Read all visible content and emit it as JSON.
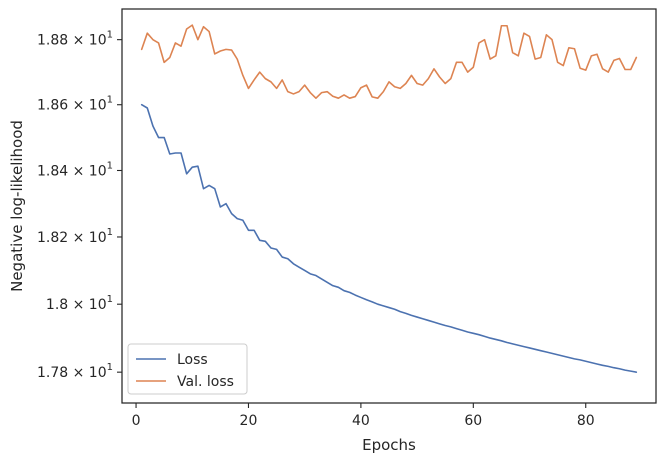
{
  "chart_data": {
    "type": "line",
    "xlabel": "Epochs",
    "ylabel": "Negative log-likelihood",
    "xlim": [
      -2.5,
      92.5
    ],
    "ylim": [
      17.71,
      18.895
    ],
    "y_scale": "log",
    "grid": false,
    "legend_position": "lower-left",
    "x_ticks": [
      0,
      20,
      40,
      60,
      80
    ],
    "x_tick_labels": [
      "0",
      "20",
      "40",
      "60",
      "80"
    ],
    "y_ticks": [
      17.8,
      18.0,
      18.2,
      18.4,
      18.6,
      18.8
    ],
    "y_tick_labels": [
      {
        "mantissa": "1.78",
        "exponent": "1"
      },
      {
        "mantissa": "1.8",
        "exponent": "1"
      },
      {
        "mantissa": "1.82",
        "exponent": "1"
      },
      {
        "mantissa": "1.84",
        "exponent": "1"
      },
      {
        "mantissa": "1.86",
        "exponent": "1"
      },
      {
        "mantissa": "1.88",
        "exponent": "1"
      }
    ],
    "y_tick_times": "×",
    "y_tick_base": "10",
    "x": [
      1,
      2,
      3,
      4,
      5,
      6,
      7,
      8,
      9,
      10,
      11,
      12,
      13,
      14,
      15,
      16,
      17,
      18,
      19,
      20,
      21,
      22,
      23,
      24,
      25,
      26,
      27,
      28,
      29,
      30,
      31,
      32,
      33,
      34,
      35,
      36,
      37,
      38,
      39,
      40,
      41,
      42,
      43,
      44,
      45,
      46,
      47,
      48,
      49,
      50,
      51,
      52,
      53,
      54,
      55,
      56,
      57,
      58,
      59,
      60,
      61,
      62,
      63,
      64,
      65,
      66,
      67,
      68,
      69,
      70,
      71,
      72,
      73,
      74,
      75,
      76,
      77,
      78,
      79,
      80,
      81,
      82,
      83,
      84,
      85,
      86,
      87,
      88,
      89
    ],
    "series": [
      {
        "name": "Loss",
        "color": "#4c72b0",
        "values": [
          18.6,
          18.59,
          18.535,
          18.5,
          18.5,
          18.45,
          18.453,
          18.453,
          18.39,
          18.41,
          18.413,
          18.345,
          18.355,
          18.345,
          18.29,
          18.3,
          18.27,
          18.255,
          18.25,
          18.22,
          18.22,
          18.19,
          18.187,
          18.167,
          18.163,
          18.14,
          18.135,
          18.12,
          18.11,
          18.1,
          18.09,
          18.085,
          18.075,
          18.065,
          18.055,
          18.05,
          18.04,
          18.035,
          18.027,
          18.02,
          18.013,
          18.007,
          18.0,
          17.995,
          17.99,
          17.985,
          17.978,
          17.973,
          17.967,
          17.962,
          17.957,
          17.952,
          17.947,
          17.942,
          17.937,
          17.933,
          17.928,
          17.923,
          17.918,
          17.914,
          17.91,
          17.905,
          17.9,
          17.896,
          17.892,
          17.887,
          17.883,
          17.879,
          17.875,
          17.871,
          17.867,
          17.863,
          17.859,
          17.855,
          17.851,
          17.847,
          17.843,
          17.839,
          17.836,
          17.832,
          17.828,
          17.824,
          17.82,
          17.817,
          17.813,
          17.81,
          17.806,
          17.803,
          17.8
        ]
      },
      {
        "name": "Val. loss",
        "color": "#dd8452",
        "values": [
          18.77,
          18.82,
          18.8,
          18.79,
          18.73,
          18.745,
          18.79,
          18.78,
          18.833,
          18.845,
          18.8,
          18.84,
          18.825,
          18.756,
          18.765,
          18.77,
          18.768,
          18.74,
          18.69,
          18.65,
          18.676,
          18.7,
          18.68,
          18.67,
          18.65,
          18.676,
          18.64,
          18.633,
          18.64,
          18.66,
          18.637,
          18.62,
          18.637,
          18.64,
          18.626,
          18.62,
          18.63,
          18.62,
          18.625,
          18.652,
          18.66,
          18.624,
          18.62,
          18.64,
          18.67,
          18.655,
          18.65,
          18.665,
          18.69,
          18.665,
          18.66,
          18.68,
          18.71,
          18.685,
          18.665,
          18.68,
          18.73,
          18.73,
          18.7,
          18.715,
          18.79,
          18.8,
          18.74,
          18.75,
          18.843,
          18.843,
          18.76,
          18.75,
          18.82,
          18.81,
          18.74,
          18.745,
          18.815,
          18.8,
          18.73,
          18.72,
          18.775,
          18.772,
          18.712,
          18.706,
          18.75,
          18.755,
          18.71,
          18.7,
          18.736,
          18.742,
          18.708,
          18.708,
          18.745
        ]
      }
    ]
  }
}
